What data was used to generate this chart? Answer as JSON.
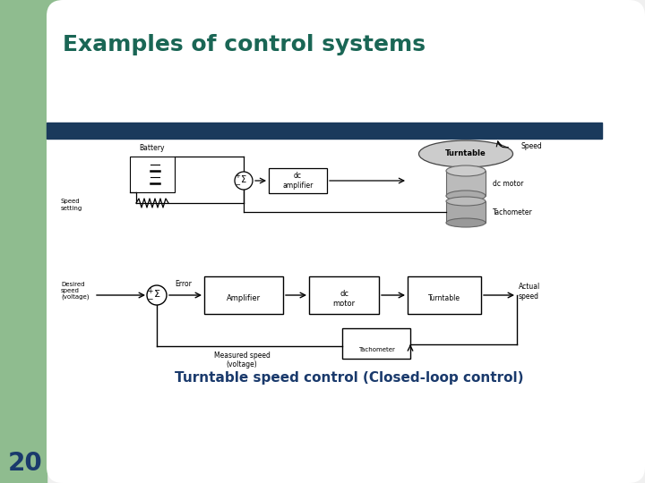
{
  "title": "Examples of control systems",
  "title_color": "#1a6655",
  "title_fontsize": 18,
  "caption": "Turntable speed control (Closed-loop control)",
  "caption_color": "#1a3a6c",
  "caption_fontsize": 11,
  "page_number": "20",
  "page_number_color": "#1a3a6c",
  "background_color": "#ffffff",
  "left_bar_color": "#8fbc8f",
  "header_bar_color": "#1a3a5c",
  "slide_bg": "#f0f0f0"
}
